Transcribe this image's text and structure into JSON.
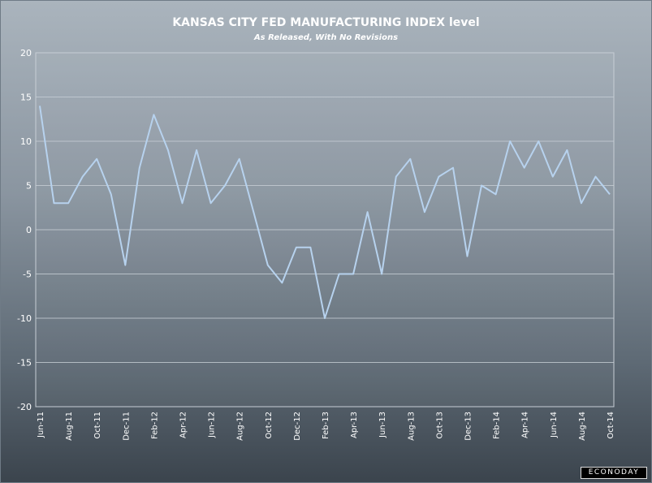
{
  "chart_data": {
    "type": "line",
    "title": "KANSAS CITY FED MANUFACTURING INDEX level",
    "subtitle": "As Released, With No Revisions",
    "xlabel": "",
    "ylabel": "",
    "ylim": [
      -20,
      20
    ],
    "yticks": [
      "20",
      "15",
      "10",
      "5",
      "0",
      "-5",
      "-10",
      "-15",
      "-20"
    ],
    "grid": true,
    "line_color": "#b7d2ee",
    "categories": [
      "Jun-11",
      "Jul-11",
      "Aug-11",
      "Sep-11",
      "Oct-11",
      "Nov-11",
      "Dec-11",
      "Jan-12",
      "Feb-12",
      "Mar-12",
      "Apr-12",
      "May-12",
      "Jun-12",
      "Jul-12",
      "Aug-12",
      "Sep-12",
      "Oct-12",
      "Nov-12",
      "Dec-12",
      "Jan-13",
      "Feb-13",
      "Mar-13",
      "Apr-13",
      "May-13",
      "Jun-13",
      "Jul-13",
      "Aug-13",
      "Sep-13",
      "Oct-13",
      "Nov-13",
      "Dec-13",
      "Jan-14",
      "Feb-14",
      "Mar-14",
      "Apr-14",
      "May-14",
      "Jun-14",
      "Jul-14",
      "Aug-14",
      "Sep-14",
      "Oct-14"
    ],
    "tick_labels": [
      "Jun-11",
      "Aug-11",
      "Oct-11",
      "Dec-11",
      "Feb-12",
      "Apr-12",
      "Jun-12",
      "Aug-12",
      "Oct-12",
      "Dec-12",
      "Feb-13",
      "Apr-13",
      "Jun-13",
      "Aug-13",
      "Oct-13",
      "Dec-13",
      "Feb-14",
      "Apr-14",
      "Jun-14",
      "Aug-14",
      "Oct-14"
    ],
    "series": [
      {
        "values": [
          14,
          3,
          3,
          6,
          8,
          4,
          -4,
          7,
          13,
          9,
          3,
          9,
          3,
          5,
          8,
          2,
          -4,
          -6,
          -2,
          -2,
          -10,
          -5,
          -5,
          2,
          -5,
          6,
          8,
          2,
          6,
          7,
          -3,
          5,
          4,
          10,
          7,
          10,
          6,
          9,
          3,
          6,
          4
        ]
      }
    ]
  },
  "branding": {
    "logo_text": "ECONODAY"
  }
}
